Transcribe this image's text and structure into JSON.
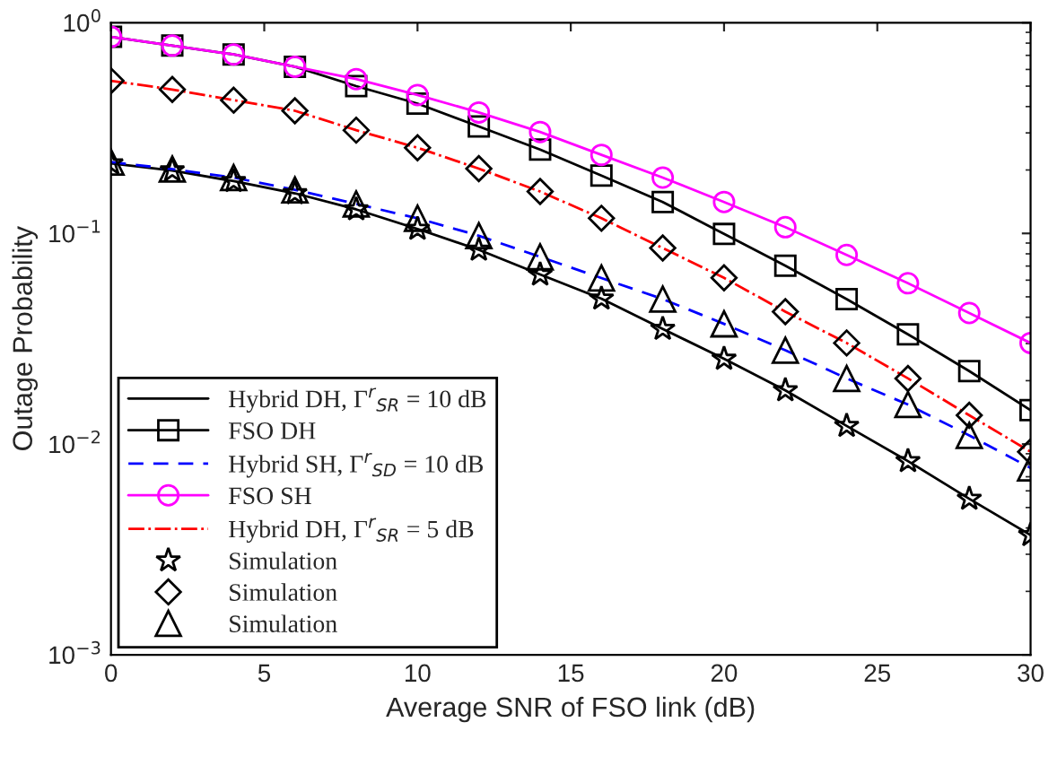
{
  "chart_data": {
    "type": "line",
    "xlabel": "Average SNR of FSO link (dB)",
    "ylabel": "Outage Probability",
    "x": [
      0,
      2,
      4,
      6,
      8,
      10,
      12,
      14,
      16,
      18,
      20,
      22,
      24,
      26,
      28,
      30
    ],
    "series": [
      {
        "name": "Hybrid DH, Γ$^{r}$$_{SR}$ = 10 dB",
        "color": "#000000",
        "line_style": "solid",
        "marker": "none",
        "values": [
          0.215,
          0.199,
          0.177,
          0.155,
          0.13,
          0.105,
          0.0836,
          0.0638,
          0.049,
          0.0352,
          0.0254,
          0.018,
          0.0122,
          0.0083,
          0.0055,
          0.0037
        ]
      },
      {
        "name": "FSO DH",
        "color": "#000000",
        "line_style": "solid",
        "marker": "square",
        "values": [
          0.857,
          0.779,
          0.707,
          0.618,
          0.5,
          0.413,
          0.322,
          0.25,
          0.188,
          0.141,
          0.0994,
          0.0703,
          0.0488,
          0.0332,
          0.0222,
          0.0145
        ]
      },
      {
        "name": "Hybrid SH, Γ$^{r}$$_{SD}$ = 10 dB",
        "color": "#0000ff",
        "line_style": "dashed",
        "marker": "none",
        "values": [
          0.218,
          0.202,
          0.184,
          0.161,
          0.138,
          0.118,
          0.0975,
          0.0774,
          0.0614,
          0.0488,
          0.0372,
          0.0279,
          0.0205,
          0.0154,
          0.011,
          0.0077
        ]
      },
      {
        "name": "FSO SH",
        "color": "#ff00ff",
        "line_style": "solid",
        "marker": "circle",
        "values": [
          0.857,
          0.779,
          0.707,
          0.618,
          0.54,
          0.454,
          0.375,
          0.303,
          0.236,
          0.184,
          0.141,
          0.107,
          0.079,
          0.058,
          0.0419,
          0.0302
        ]
      },
      {
        "name": "Hybrid DH, Γ$^{r}$$_{SR}$ = 5 dB",
        "color": "#ff0000",
        "line_style": "dashdot",
        "marker": "none",
        "values": [
          0.53,
          0.482,
          0.429,
          0.382,
          0.309,
          0.255,
          0.203,
          0.158,
          0.118,
          0.0852,
          0.0615,
          0.0425,
          0.0302,
          0.0205,
          0.0137,
          0.0092
        ]
      },
      {
        "name": "Simulation",
        "type": "scatter",
        "color": "#000000",
        "marker": "star",
        "values": [
          0.215,
          0.199,
          0.177,
          0.155,
          0.13,
          0.105,
          0.0836,
          0.0638,
          0.049,
          0.0352,
          0.0254,
          0.018,
          0.0122,
          0.0083,
          0.0055,
          0.0037
        ]
      },
      {
        "name": "Simulation",
        "type": "scatter",
        "color": "#000000",
        "marker": "diamond",
        "values": [
          0.53,
          0.482,
          0.429,
          0.382,
          0.309,
          0.255,
          0.203,
          0.158,
          0.118,
          0.0852,
          0.0615,
          0.0425,
          0.0302,
          0.0205,
          0.0137,
          0.0092
        ]
      },
      {
        "name": "Simulation",
        "type": "scatter",
        "color": "#000000",
        "marker": "triangle",
        "values": [
          0.218,
          0.202,
          0.184,
          0.161,
          0.138,
          0.118,
          0.0975,
          0.0774,
          0.0614,
          0.0488,
          0.0372,
          0.0279,
          0.0205,
          0.0154,
          0.011,
          0.0077
        ]
      }
    ],
    "log": "y",
    "xlim": [
      0,
      30
    ],
    "ylim": [
      0.001,
      1
    ],
    "xticks": [
      0,
      5,
      10,
      15,
      20,
      25,
      30
    ],
    "yticks": [
      {
        "value": 0.001,
        "label": "10$^{−3}$"
      },
      {
        "value": 0.01,
        "label": "10$^{−2}$"
      },
      {
        "value": 0.1,
        "label": "10$^{−1}$"
      },
      {
        "value": 1,
        "label": "10$^{0}$"
      }
    ],
    "grid": false,
    "legend": "bottom left"
  }
}
